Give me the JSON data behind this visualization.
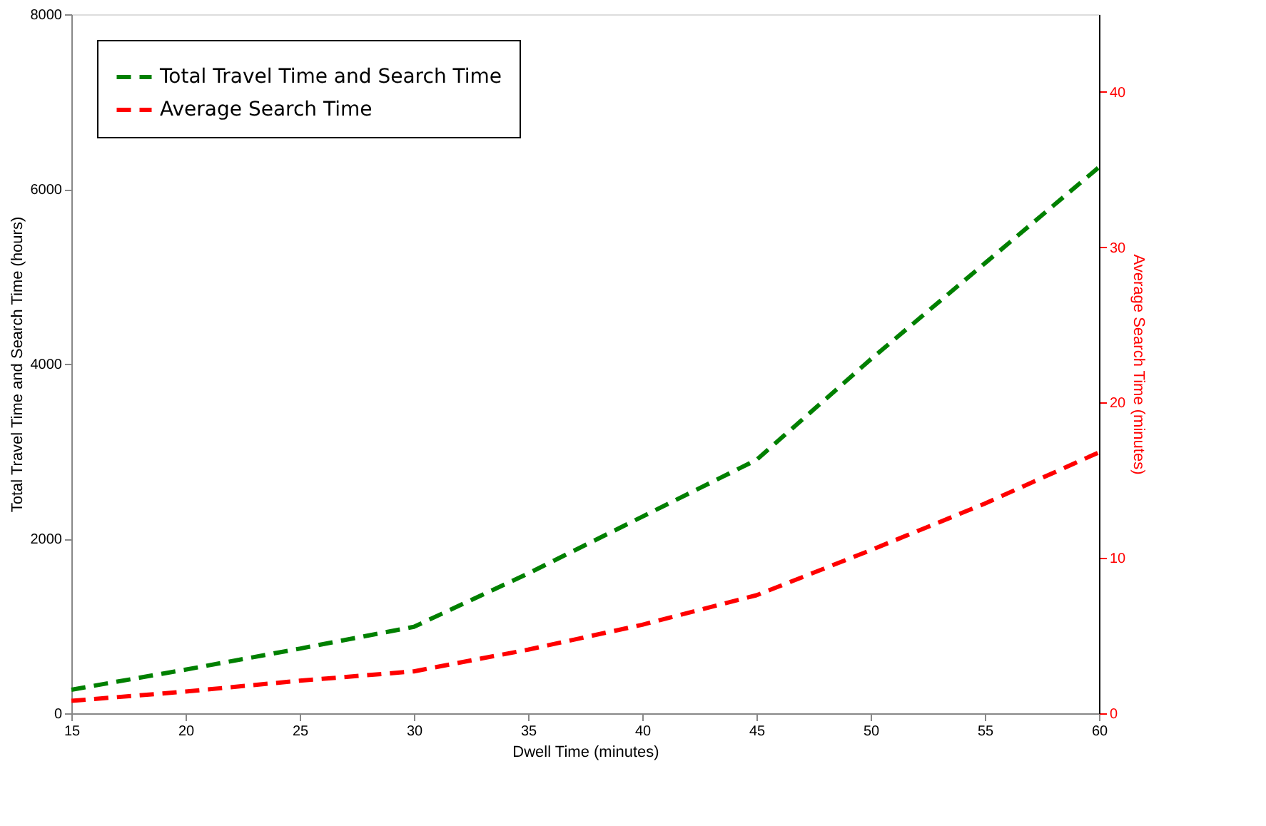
{
  "chart_data": {
    "type": "line",
    "xlabel": "Dwell Time (minutes)",
    "ylabel": "Total Travel Time and Search Time (hours)",
    "y2label": "Average Search Time (minutes)",
    "x": [
      15,
      20,
      25,
      30,
      35,
      40,
      45,
      50,
      55,
      60
    ],
    "series": [
      {
        "name": "Total Travel Time and Search Time",
        "color": "#008000",
        "line_style": "dashed",
        "values": [
          270,
          500,
          740,
          990,
          1600,
          2250,
          2900,
          4050,
          5150,
          6250
        ]
      },
      {
        "name": "Average Search Time",
        "color": "#ff0000",
        "line_style": "dashed",
        "axis": "y2",
        "values": [
          0.8,
          1.4,
          2.1,
          2.7,
          4.1,
          5.7,
          7.6,
          10.5,
          13.5,
          16.8
        ]
      }
    ],
    "xlim": [
      15,
      60
    ],
    "xticks": [
      15,
      20,
      25,
      30,
      35,
      40,
      45,
      50,
      55,
      60
    ],
    "ylim": [
      0,
      8000
    ],
    "yticks": [
      0,
      2000,
      4000,
      6000,
      8000
    ],
    "y2lim": [
      0,
      45
    ],
    "y2ticks": [
      0,
      10,
      20,
      30,
      40
    ],
    "grid": false,
    "legend": "top left",
    "marker": "none"
  }
}
